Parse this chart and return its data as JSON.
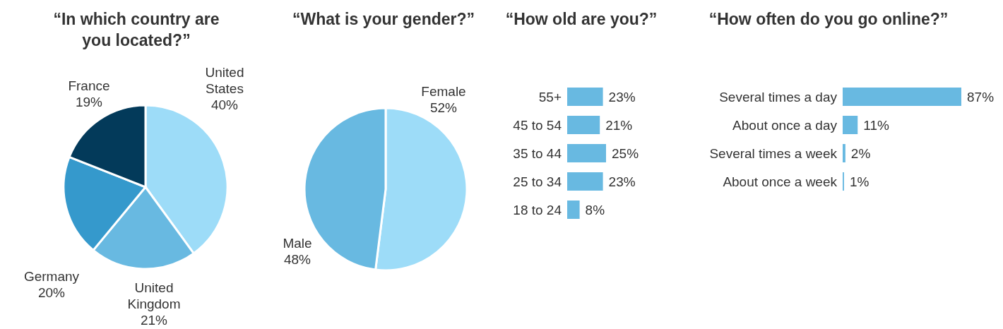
{
  "chart_data": [
    {
      "type": "pie",
      "title": "“In which country are you located?”",
      "categories": [
        "United States",
        "United Kingdom",
        "Germany",
        "France"
      ],
      "values": [
        40,
        21,
        20,
        19
      ],
      "colors": [
        "#9ddcf8",
        "#68b9e1",
        "#3599cc",
        "#033a5a"
      ],
      "value_labels": [
        "40%",
        "21%",
        "20%",
        "19%"
      ]
    },
    {
      "type": "pie",
      "title": "“What is your gender?”",
      "categories": [
        "Female",
        "Male"
      ],
      "values": [
        52,
        48
      ],
      "colors": [
        "#9ddcf8",
        "#68b9e1"
      ],
      "value_labels": [
        "52%",
        "48%"
      ]
    },
    {
      "type": "bar",
      "orientation": "horizontal",
      "title": "“How old are you?”",
      "categories": [
        "55+",
        "45 to 54",
        "35 to 44",
        "25 to 34",
        "18 to 24"
      ],
      "values": [
        23,
        21,
        25,
        23,
        8
      ],
      "color": "#68b9e1",
      "value_labels": [
        "23%",
        "21%",
        "25%",
        "23%",
        "8%"
      ]
    },
    {
      "type": "bar",
      "orientation": "horizontal",
      "title": "“How often do you go online?”",
      "categories": [
        "Several times a day",
        "About once a day",
        "Several times a week",
        "About once a week"
      ],
      "values": [
        87,
        11,
        2,
        1
      ],
      "color": "#68b9e1",
      "value_labels": [
        "87%",
        "11%",
        "2%",
        "1%"
      ]
    }
  ]
}
